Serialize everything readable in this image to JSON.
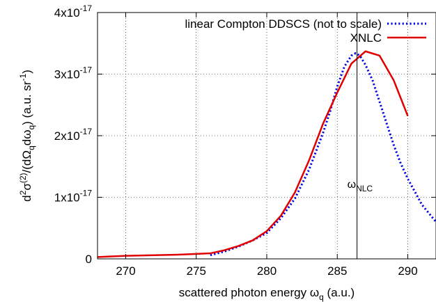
{
  "chart_data": {
    "type": "line",
    "xlabel": {
      "main": "scattered photon energy ω",
      "sub": "q",
      "tail": " (a.u.)"
    },
    "ylabel": {
      "pre": "d",
      "sup1": "2",
      "mid": "σ",
      "sup2": "(2)",
      "post1": "/(dΩ",
      "sub1": "q",
      "post2": "dω",
      "sub2": "q",
      "post3": ") (a.u. sr",
      "sup3": "-1",
      "post4": ")"
    },
    "xlim": [
      268,
      292
    ],
    "ylim": [
      0,
      4
    ],
    "y_scale_factor": "1e-17",
    "x_ticks": [
      270,
      275,
      280,
      285,
      290
    ],
    "y_ticks": [
      {
        "v": 0,
        "label": "0",
        "exp": ""
      },
      {
        "v": 1,
        "label": "1x10",
        "exp": "-17"
      },
      {
        "v": 2,
        "label": "2x10",
        "exp": "-17"
      },
      {
        "v": 3,
        "label": "3x10",
        "exp": "-17"
      },
      {
        "v": 4,
        "label": "4x10",
        "exp": "-17"
      }
    ],
    "grid": true,
    "legend_position": "top-right",
    "annotation": {
      "text": "ω",
      "sub": "NLC",
      "x": 286.4
    },
    "series": [
      {
        "name": "linear Compton DDSCS (not to scale)",
        "color": "#0000e0",
        "style": "dotted",
        "x": [
          276,
          277,
          278,
          279,
          280,
          281,
          282,
          283,
          284,
          284.5,
          285,
          285.5,
          286,
          286.3,
          286.6,
          287,
          287.5,
          288,
          288.5,
          289,
          289.5,
          290,
          291,
          292
        ],
        "y": [
          0.06,
          0.12,
          0.2,
          0.3,
          0.42,
          0.66,
          0.98,
          1.45,
          2.05,
          2.4,
          2.8,
          3.12,
          3.3,
          3.34,
          3.3,
          3.15,
          2.9,
          2.55,
          2.2,
          1.85,
          1.55,
          1.3,
          0.88,
          0.6
        ]
      },
      {
        "name": "XNLC",
        "color": "#e00000",
        "style": "solid",
        "x": [
          268,
          270,
          272,
          274,
          276,
          277,
          278,
          279,
          280,
          281,
          282,
          283,
          284,
          285,
          286,
          287,
          288,
          289,
          290
        ],
        "y": [
          0.03,
          0.05,
          0.06,
          0.07,
          0.09,
          0.14,
          0.21,
          0.3,
          0.45,
          0.7,
          1.08,
          1.6,
          2.2,
          2.7,
          3.17,
          3.37,
          3.3,
          2.9,
          2.32
        ]
      }
    ]
  }
}
